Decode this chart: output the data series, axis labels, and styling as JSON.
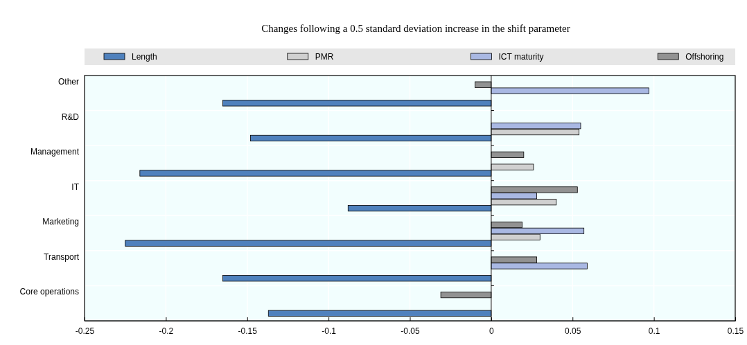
{
  "chart_data": {
    "type": "bar",
    "orientation": "horizontal",
    "title": "Changes following a 0.5 standard deviation increase in the shift parameter",
    "categories": [
      "Other",
      "R&D",
      "Management",
      "IT",
      "Marketing",
      "Transport",
      "Core operations"
    ],
    "series": [
      {
        "name": "Length",
        "color": "#4f81bd",
        "values": [
          -0.165,
          -0.148,
          -0.216,
          -0.088,
          -0.225,
          -0.165,
          -0.137
        ]
      },
      {
        "name": "PMR",
        "color": "#d0d0d0",
        "values": [
          null,
          0.054,
          0.026,
          0.04,
          0.03,
          null,
          null
        ]
      },
      {
        "name": "ICT maturity",
        "color": "#a9b8e3",
        "values": [
          0.097,
          0.055,
          null,
          0.028,
          0.057,
          0.059,
          null
        ]
      },
      {
        "name": "Offshoring",
        "color": "#929292",
        "values": [
          -0.01,
          null,
          0.02,
          0.053,
          0.019,
          0.028,
          -0.031
        ]
      }
    ],
    "xlim": [
      -0.25,
      0.15
    ],
    "xticks": [
      -0.25,
      -0.2,
      -0.15,
      -0.1,
      -0.05,
      0,
      0.05,
      0.1,
      0.15
    ],
    "grid": true,
    "legend": "top"
  }
}
